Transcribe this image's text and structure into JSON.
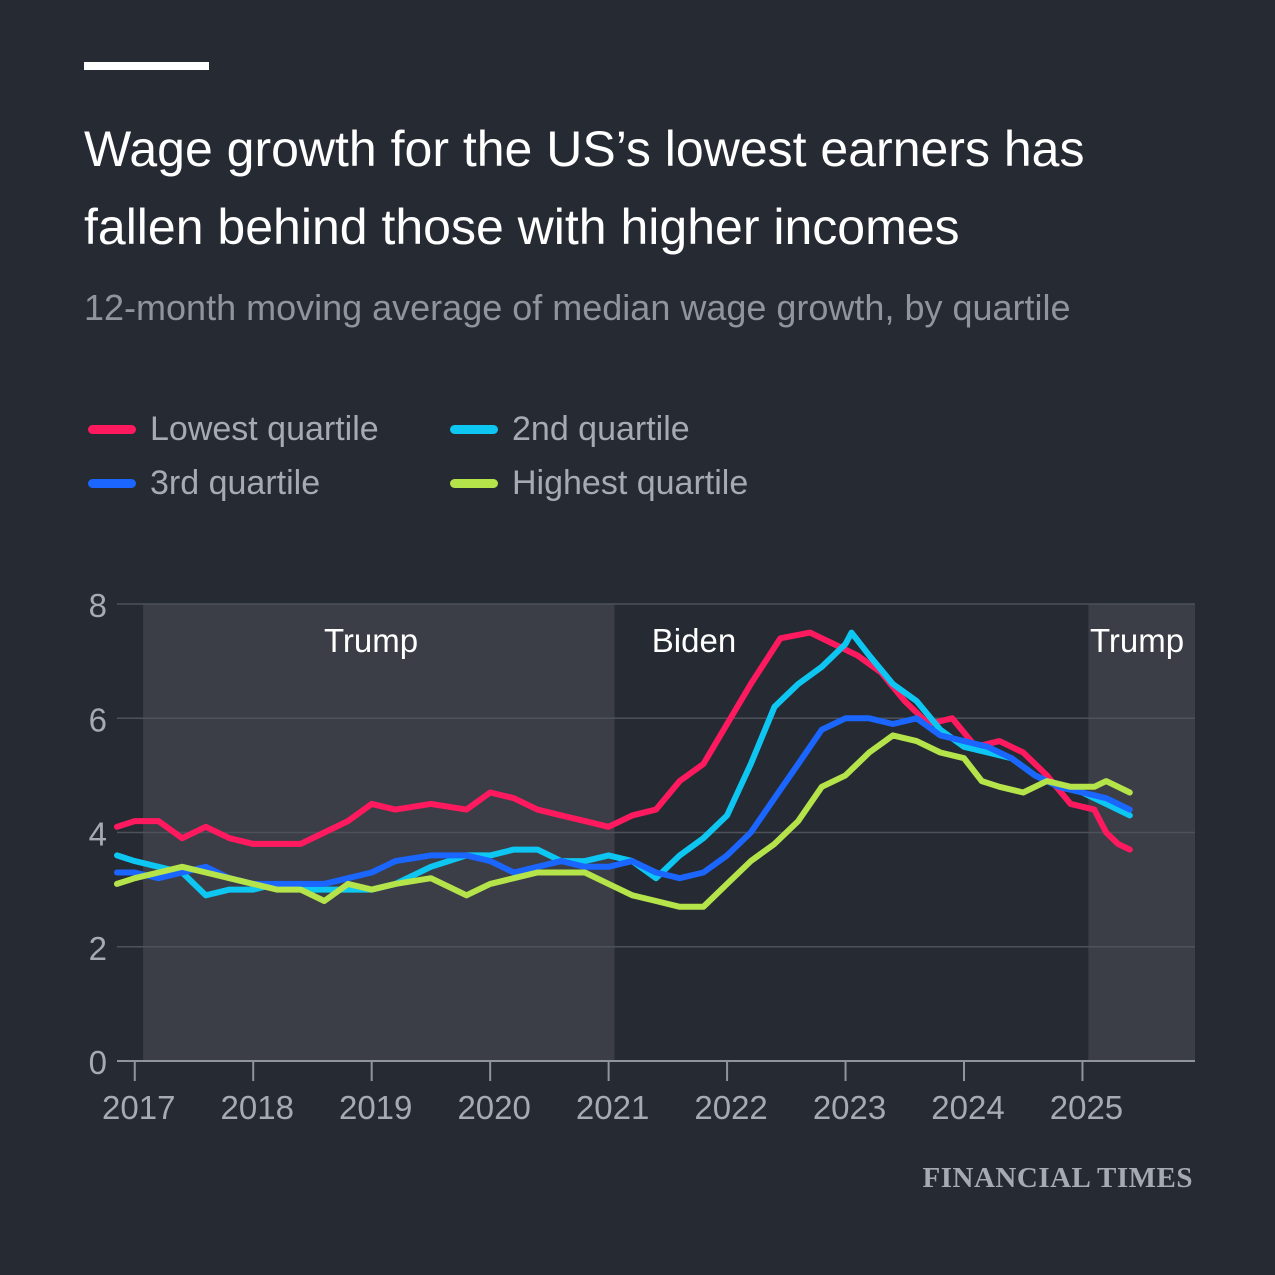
{
  "header": {
    "title": "Wage growth for the US’s lowest earners has fallen behind those with higher incomes",
    "subtitle": "12-month moving average of median wage growth, by quartile"
  },
  "legend": [
    {
      "label": "Lowest quartile",
      "color": "#ff1a60"
    },
    {
      "label": "2nd quartile",
      "color": "#0dc7f2"
    },
    {
      "label": "3rd quartile",
      "color": "#1a66ff"
    },
    {
      "label": "Highest quartile",
      "color": "#b5e34a"
    }
  ],
  "brand": "FINANCIAL TIMES",
  "chart_data": {
    "type": "line",
    "x_unit": "year",
    "xlim": [
      2016.85,
      2025.95
    ],
    "ylim": [
      0,
      8
    ],
    "yticks": [
      0,
      2,
      4,
      6,
      8
    ],
    "xticks": [
      2017,
      2018,
      2019,
      2020,
      2021,
      2022,
      2023,
      2024,
      2025
    ],
    "xtick_labels": [
      "2017",
      "2018",
      "2019",
      "2020",
      "2021",
      "2022",
      "2023",
      "2024",
      "2025"
    ],
    "ytick_labels": [
      "0",
      "2",
      "4",
      "6",
      "8"
    ],
    "grid": true,
    "shaded_periods": [
      {
        "label": "Trump",
        "start": 2017.07,
        "end": 2021.05
      },
      {
        "label": "Biden",
        "start": 2021.05,
        "end": 2025.05,
        "shaded": false
      },
      {
        "label": "Trump",
        "start": 2025.05,
        "end": 2025.95
      }
    ],
    "series": [
      {
        "name": "Lowest quartile",
        "color": "#ff1a60",
        "x": [
          2016.85,
          2017.0,
          2017.2,
          2017.4,
          2017.6,
          2017.8,
          2018.0,
          2018.2,
          2018.4,
          2018.6,
          2018.8,
          2019.0,
          2019.2,
          2019.5,
          2019.8,
          2020.0,
          2020.2,
          2020.4,
          2020.6,
          2020.8,
          2021.0,
          2021.2,
          2021.4,
          2021.6,
          2021.8,
          2022.0,
          2022.2,
          2022.45,
          2022.7,
          2022.9,
          2023.1,
          2023.3,
          2023.5,
          2023.7,
          2023.9,
          2024.1,
          2024.3,
          2024.5,
          2024.7,
          2024.9,
          2025.1,
          2025.2,
          2025.3,
          2025.4
        ],
        "y": [
          4.1,
          4.2,
          4.2,
          3.9,
          4.1,
          3.9,
          3.8,
          3.8,
          3.8,
          4.0,
          4.2,
          4.5,
          4.4,
          4.5,
          4.4,
          4.7,
          4.6,
          4.4,
          4.3,
          4.2,
          4.1,
          4.3,
          4.4,
          4.9,
          5.2,
          5.9,
          6.6,
          7.4,
          7.5,
          7.3,
          7.1,
          6.8,
          6.3,
          5.9,
          6.0,
          5.5,
          5.6,
          5.4,
          5.0,
          4.5,
          4.4,
          4.0,
          3.8,
          3.7
        ]
      },
      {
        "name": "2nd quartile",
        "color": "#0dc7f2",
        "x": [
          2016.85,
          2017.0,
          2017.2,
          2017.4,
          2017.6,
          2017.8,
          2018.0,
          2018.2,
          2018.4,
          2018.6,
          2018.8,
          2019.0,
          2019.2,
          2019.5,
          2019.8,
          2020.0,
          2020.2,
          2020.4,
          2020.6,
          2020.8,
          2021.0,
          2021.2,
          2021.4,
          2021.6,
          2021.8,
          2022.0,
          2022.2,
          2022.4,
          2022.6,
          2022.8,
          2023.0,
          2023.05,
          2023.2,
          2023.4,
          2023.6,
          2023.8,
          2024.0,
          2024.2,
          2024.4,
          2024.6,
          2024.8,
          2025.0,
          2025.2,
          2025.4
        ],
        "y": [
          3.6,
          3.5,
          3.4,
          3.3,
          2.9,
          3.0,
          3.0,
          3.1,
          3.0,
          3.0,
          3.0,
          3.0,
          3.1,
          3.4,
          3.6,
          3.6,
          3.7,
          3.7,
          3.5,
          3.5,
          3.6,
          3.5,
          3.2,
          3.6,
          3.9,
          4.3,
          5.2,
          6.2,
          6.6,
          6.9,
          7.3,
          7.5,
          7.1,
          6.6,
          6.3,
          5.8,
          5.5,
          5.4,
          5.3,
          5.0,
          4.8,
          4.7,
          4.5,
          4.3
        ]
      },
      {
        "name": "3rd quartile",
        "color": "#1a66ff",
        "x": [
          2016.85,
          2017.0,
          2017.2,
          2017.4,
          2017.6,
          2017.8,
          2018.0,
          2018.2,
          2018.4,
          2018.6,
          2018.8,
          2019.0,
          2019.2,
          2019.5,
          2019.8,
          2020.0,
          2020.2,
          2020.4,
          2020.6,
          2020.8,
          2021.0,
          2021.2,
          2021.4,
          2021.6,
          2021.8,
          2022.0,
          2022.2,
          2022.4,
          2022.6,
          2022.8,
          2023.0,
          2023.2,
          2023.4,
          2023.6,
          2023.8,
          2024.0,
          2024.2,
          2024.4,
          2024.6,
          2024.8,
          2025.0,
          2025.2,
          2025.4
        ],
        "y": [
          3.3,
          3.3,
          3.2,
          3.3,
          3.4,
          3.2,
          3.1,
          3.1,
          3.1,
          3.1,
          3.2,
          3.3,
          3.5,
          3.6,
          3.6,
          3.5,
          3.3,
          3.4,
          3.5,
          3.4,
          3.4,
          3.5,
          3.3,
          3.2,
          3.3,
          3.6,
          4.0,
          4.6,
          5.2,
          5.8,
          6.0,
          6.0,
          5.9,
          6.0,
          5.7,
          5.6,
          5.5,
          5.3,
          5.0,
          4.8,
          4.7,
          4.6,
          4.4
        ]
      },
      {
        "name": "Highest quartile",
        "color": "#b5e34a",
        "x": [
          2016.85,
          2017.0,
          2017.2,
          2017.4,
          2017.6,
          2017.8,
          2018.0,
          2018.2,
          2018.4,
          2018.6,
          2018.8,
          2019.0,
          2019.2,
          2019.5,
          2019.8,
          2020.0,
          2020.2,
          2020.4,
          2020.6,
          2020.8,
          2021.0,
          2021.2,
          2021.4,
          2021.6,
          2021.8,
          2022.0,
          2022.2,
          2022.4,
          2022.6,
          2022.8,
          2023.0,
          2023.2,
          2023.4,
          2023.6,
          2023.8,
          2024.0,
          2024.15,
          2024.3,
          2024.5,
          2024.7,
          2024.9,
          2025.1,
          2025.2,
          2025.4
        ],
        "y": [
          3.1,
          3.2,
          3.3,
          3.4,
          3.3,
          3.2,
          3.1,
          3.0,
          3.0,
          2.8,
          3.1,
          3.0,
          3.1,
          3.2,
          2.9,
          3.1,
          3.2,
          3.3,
          3.3,
          3.3,
          3.1,
          2.9,
          2.8,
          2.7,
          2.7,
          3.1,
          3.5,
          3.8,
          4.2,
          4.8,
          5.0,
          5.4,
          5.7,
          5.6,
          5.4,
          5.3,
          4.9,
          4.8,
          4.7,
          4.9,
          4.8,
          4.8,
          4.9,
          4.7
        ]
      }
    ]
  }
}
